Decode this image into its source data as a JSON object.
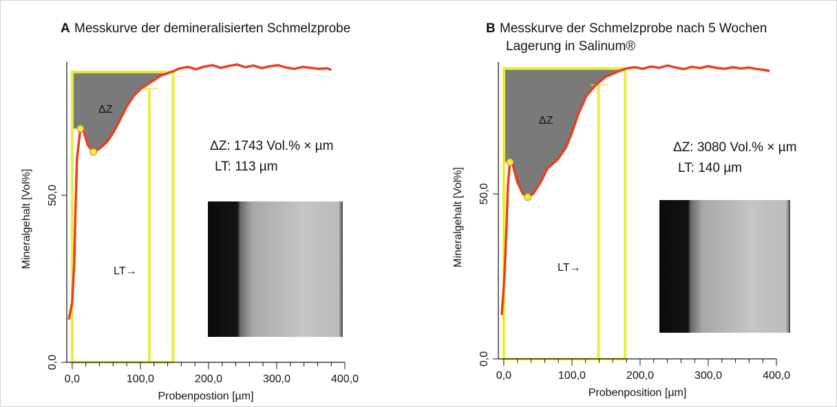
{
  "chart_data": [
    {
      "type": "line",
      "panel_label": "A",
      "title": [
        "Messkurve der demineralisierten Schmelzprobe"
      ],
      "xlabel": "Probenpostion [µm]",
      "ylabel": "Mineralgehalt [Vol%]",
      "xlim": [
        -8,
        400
      ],
      "ylim": [
        0,
        90
      ],
      "xticks": [
        {
          "value": 0,
          "label": "0,0"
        },
        {
          "value": 100,
          "label": "100,0"
        },
        {
          "value": 200,
          "label": "200,0"
        },
        {
          "value": 300,
          "label": "300,0"
        },
        {
          "value": 400,
          "label": "400,0"
        }
      ],
      "xminor": [
        20,
        40,
        60,
        80,
        120,
        140,
        160,
        180,
        220,
        240,
        260,
        280,
        320,
        340,
        360,
        380
      ],
      "yticks": [
        {
          "value": 0,
          "label": "0,0"
        },
        {
          "value": 50,
          "label": "50,0"
        }
      ],
      "series": [
        {
          "color": "#e8401c",
          "x": [
            -5,
            0,
            3,
            5,
            7,
            12,
            17,
            23,
            31,
            40,
            51,
            61,
            71,
            81,
            91,
            101,
            116,
            131,
            146,
            157,
            170,
            182,
            194,
            206,
            218,
            230,
            242,
            254,
            266,
            278,
            290,
            302,
            314,
            326,
            338,
            350,
            362,
            374,
            380
          ],
          "values": [
            12.8,
            18,
            30,
            47,
            61,
            70,
            69,
            65,
            63,
            64,
            66,
            69,
            73,
            77,
            80,
            82,
            84,
            86,
            87,
            88,
            88.5,
            87.8,
            88.6,
            89,
            88.2,
            88.8,
            89.2,
            88.4,
            88.9,
            88.1,
            88.7,
            89,
            88.3,
            87.9,
            88.5,
            88.2,
            87.9,
            88.1,
            87.6
          ]
        }
      ],
      "markers": {
        "x": [
          12,
          31
        ],
        "y": [
          70,
          63
        ],
        "color": "#f5e642"
      },
      "box_x": [
        0,
        148
      ],
      "box_y": [
        0,
        87
      ],
      "lt_line": {
        "x": 113,
        "y_top": 82
      },
      "box_color": "#ecec3c",
      "area_color": "#7a7a7a",
      "annotations": {
        "delta_z": "ΔZ",
        "lt_arrow": "LT→",
        "delta_z_value": "ΔZ: 1743 Vol.% × µm",
        "lt_value": "LT: 113 µm"
      }
    },
    {
      "type": "line",
      "panel_label": "B",
      "title": [
        "Messkurve der Schmelzprobe nach 5 Wochen",
        "Lagerung in Salinum®"
      ],
      "xlabel": "Probenposition [µm]",
      "ylabel": "Mineralgehalt [Vol%]",
      "xlim": [
        -8,
        400
      ],
      "ylim": [
        0,
        90
      ],
      "xticks": [
        {
          "value": 0,
          "label": "0,0"
        },
        {
          "value": 100,
          "label": "100,0"
        },
        {
          "value": 200,
          "label": "200,0"
        },
        {
          "value": 300,
          "label": "300,0"
        },
        {
          "value": 400,
          "label": "400,0"
        }
      ],
      "xminor": [
        20,
        40,
        60,
        80,
        120,
        140,
        160,
        180,
        220,
        240,
        260,
        280,
        320,
        340,
        360,
        380
      ],
      "yticks": [
        {
          "value": 0,
          "label": "0,0"
        },
        {
          "value": 50,
          "label": "50,0"
        }
      ],
      "series": [
        {
          "color": "#e8401c",
          "x": [
            -3,
            1,
            4,
            6,
            9,
            13,
            20,
            28,
            35,
            43,
            54,
            64,
            79,
            91,
            99,
            109,
            121,
            134,
            149,
            170,
            180,
            192,
            204,
            216,
            228,
            240,
            252,
            264,
            276,
            288,
            300,
            312,
            324,
            336,
            348,
            360,
            372,
            384,
            390
          ],
          "values": [
            13.3,
            25,
            40,
            52.5,
            59.6,
            59,
            53.5,
            50,
            49,
            50,
            53.5,
            57.7,
            60.4,
            64,
            68,
            74,
            79.6,
            82.8,
            85.4,
            87.3,
            88,
            88.4,
            87.9,
            88.6,
            88.2,
            88.9,
            88.3,
            87.8,
            88.5,
            88.1,
            88.7,
            88.2,
            87.9,
            88.4,
            88,
            88.3,
            87.8,
            87.5,
            87.2
          ]
        }
      ],
      "markers": {
        "x": [
          9,
          35
        ],
        "y": [
          59.6,
          49
        ],
        "color": "#f5e642"
      },
      "box_x": [
        0,
        178
      ],
      "box_y": [
        0,
        88
      ],
      "lt_line": {
        "x": 139,
        "y_top": 83
      },
      "box_color": "#ecec3c",
      "area_color": "#7a7a7a",
      "annotations": {
        "delta_z": "ΔZ",
        "lt_arrow": "LT→",
        "delta_z_value": "ΔZ: 3080 Vol.% × µm",
        "lt_value": "LT: 140 µm"
      }
    }
  ]
}
